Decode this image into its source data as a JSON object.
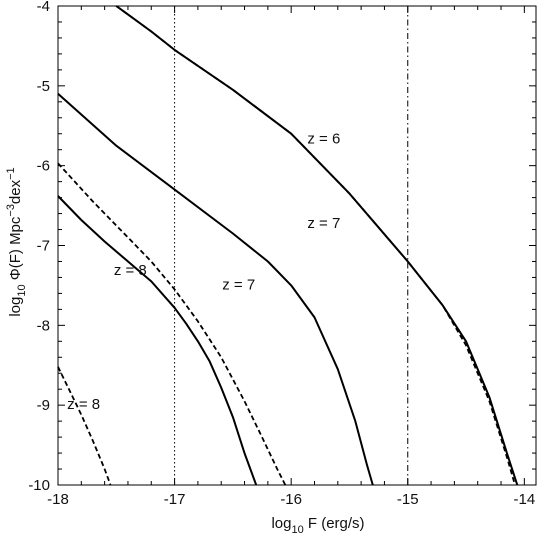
{
  "chart_data": {
    "type": "line",
    "title": "",
    "xlabel": {
      "base": "log",
      "sub": "10",
      "rest": " F (erg/s)"
    },
    "ylabel": {
      "base": "log",
      "sub": "10",
      "mid": " Φ(F)  Mpc",
      "sup1": "−3",
      "mid2": "dex",
      "sup2": "−1"
    },
    "xlim": [
      -18,
      -13.9
    ],
    "ylim": [
      -10,
      -4
    ],
    "xticks": [
      -18,
      -17,
      -16,
      -15,
      -14
    ],
    "xtick_labels": [
      "-18",
      "-17",
      "-16",
      "-15",
      "-14"
    ],
    "yticks": [
      -10,
      -9,
      -8,
      -7,
      -6,
      -5,
      -4
    ],
    "ytick_labels": [
      "-10",
      "-9",
      "-8",
      "-7",
      "-6",
      "-5",
      "-4"
    ],
    "grid": false,
    "reference_lines": [
      {
        "x": -17.0,
        "style": "dotted"
      },
      {
        "x": -15.0,
        "style": "dashdot"
      }
    ],
    "series": [
      {
        "style": "solid",
        "x": [
          -17.5,
          -17.2,
          -17.0,
          -16.5,
          -16.0,
          -15.5,
          -15.0,
          -14.7,
          -14.5,
          -14.3,
          -14.15,
          -14.06
        ],
        "y": [
          -4.0,
          -4.32,
          -4.55,
          -5.05,
          -5.6,
          -6.35,
          -7.2,
          -7.75,
          -8.2,
          -8.9,
          -9.6,
          -10.0
        ]
      },
      {
        "style": "dashed",
        "x": [
          -17.5,
          -17.2,
          -17.0,
          -16.5,
          -16.0,
          -15.5,
          -15.0,
          -14.7,
          -14.5,
          -14.3,
          -14.15,
          -14.08
        ],
        "y": [
          -4.0,
          -4.32,
          -4.55,
          -5.05,
          -5.6,
          -6.35,
          -7.2,
          -7.75,
          -8.25,
          -8.95,
          -9.65,
          -10.0
        ]
      },
      {
        "style": "solid",
        "x": [
          -18.0,
          -17.5,
          -17.0,
          -16.5,
          -16.2,
          -16.0,
          -15.8,
          -15.6,
          -15.45,
          -15.35,
          -15.3
        ],
        "y": [
          -5.1,
          -5.75,
          -6.3,
          -6.85,
          -7.2,
          -7.5,
          -7.9,
          -8.55,
          -9.2,
          -9.75,
          -10.0
        ]
      },
      {
        "style": "dashed",
        "x": [
          -18.0,
          -17.7,
          -17.4,
          -17.2,
          -17.0,
          -16.8,
          -16.6,
          -16.4,
          -16.25,
          -16.12,
          -16.05
        ],
        "y": [
          -5.97,
          -6.45,
          -6.9,
          -7.2,
          -7.55,
          -7.95,
          -8.4,
          -8.95,
          -9.4,
          -9.8,
          -10.0
        ]
      },
      {
        "style": "solid",
        "x": [
          -18.0,
          -17.8,
          -17.6,
          -17.4,
          -17.2,
          -17.0,
          -16.9,
          -16.8,
          -16.7,
          -16.6,
          -16.5,
          -16.4,
          -16.3
        ],
        "y": [
          -6.38,
          -6.68,
          -6.95,
          -7.2,
          -7.45,
          -7.78,
          -7.98,
          -8.2,
          -8.45,
          -8.78,
          -9.15,
          -9.6,
          -10.0
        ]
      },
      {
        "style": "dashed",
        "x": [
          -18.0,
          -17.9,
          -17.8,
          -17.7,
          -17.6,
          -17.55
        ],
        "y": [
          -8.52,
          -8.82,
          -9.12,
          -9.45,
          -9.8,
          -10.0
        ]
      }
    ],
    "annotations": [
      {
        "text": "z = 6",
        "x": -15.72,
        "y": -5.72
      },
      {
        "text": "z = 7",
        "x": -15.72,
        "y": -6.78
      },
      {
        "text": "z = 7",
        "x": -16.45,
        "y": -7.55
      },
      {
        "text": "z = 8",
        "x": -17.38,
        "y": -7.37
      },
      {
        "text": "z = 8",
        "x": -17.78,
        "y": -9.05
      }
    ]
  }
}
